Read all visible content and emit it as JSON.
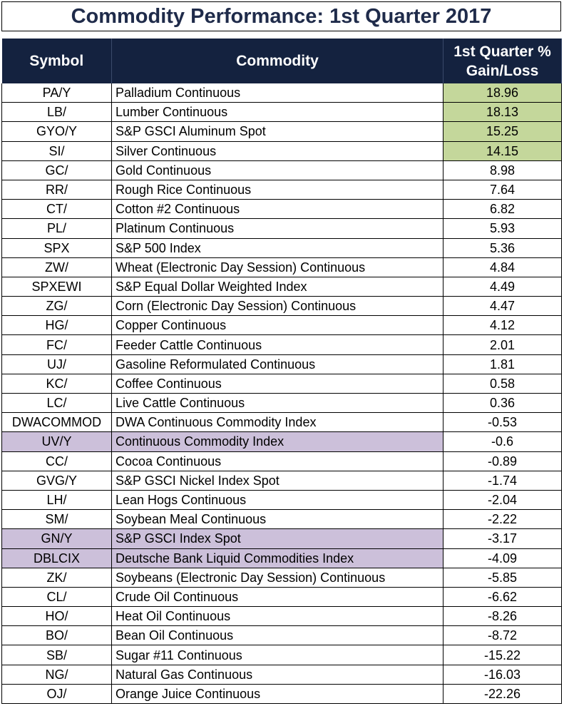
{
  "title": "Commodity Performance: 1st Quarter 2017",
  "colors": {
    "header_bg": "#14223f",
    "title_text": "#1f2b4a",
    "gain_highlight": "#c4d79b",
    "index_highlight": "#ccc0da"
  },
  "chart_data": {
    "type": "table",
    "title": "Commodity Performance: 1st Quarter 2017",
    "columns": [
      "Symbol",
      "Commodity",
      "1st Quarter %",
      "Gain/Loss"
    ],
    "rows": [
      {
        "symbol": "PA/Y",
        "commodity": "Palladium Continuous",
        "value": "18.96",
        "highlight": "gain"
      },
      {
        "symbol": "LB/",
        "commodity": "Lumber Continuous",
        "value": "18.13",
        "highlight": "gain"
      },
      {
        "symbol": "GYO/Y",
        "commodity": "S&P GSCI Aluminum Spot",
        "value": "15.25",
        "highlight": "gain"
      },
      {
        "symbol": "SI/",
        "commodity": "Silver Continuous",
        "value": "14.15",
        "highlight": "gain"
      },
      {
        "symbol": "GC/",
        "commodity": "Gold Continuous",
        "value": "8.98",
        "highlight": "none"
      },
      {
        "symbol": "RR/",
        "commodity": "Rough Rice Continuous",
        "value": "7.64",
        "highlight": "none"
      },
      {
        "symbol": "CT/",
        "commodity": "Cotton #2 Continuous",
        "value": "6.82",
        "highlight": "none"
      },
      {
        "symbol": "PL/",
        "commodity": "Platinum Continuous",
        "value": "5.93",
        "highlight": "none"
      },
      {
        "symbol": "SPX",
        "commodity": "S&P 500 Index",
        "value": "5.36",
        "highlight": "none"
      },
      {
        "symbol": "ZW/",
        "commodity": "Wheat (Electronic Day Session) Continuous",
        "value": "4.84",
        "highlight": "none"
      },
      {
        "symbol": "SPXEWI",
        "commodity": "S&P Equal Dollar Weighted Index",
        "value": "4.49",
        "highlight": "none"
      },
      {
        "symbol": "ZG/",
        "commodity": "Corn (Electronic Day Session) Continuous",
        "value": "4.47",
        "highlight": "none"
      },
      {
        "symbol": "HG/",
        "commodity": "Copper Continuous",
        "value": "4.12",
        "highlight": "none"
      },
      {
        "symbol": "FC/",
        "commodity": "Feeder Cattle Continuous",
        "value": "2.01",
        "highlight": "none"
      },
      {
        "symbol": "UJ/",
        "commodity": "Gasoline Reformulated Continuous",
        "value": "1.81",
        "highlight": "none"
      },
      {
        "symbol": "KC/",
        "commodity": "Coffee Continuous",
        "value": "0.58",
        "highlight": "none"
      },
      {
        "symbol": "LC/",
        "commodity": "Live Cattle Continuous",
        "value": "0.36",
        "highlight": "none"
      },
      {
        "symbol": "DWACOMMOD",
        "commodity": "DWA Continuous Commodity Index",
        "value": "-0.53",
        "highlight": "none"
      },
      {
        "symbol": "UV/Y",
        "commodity": "Continuous Commodity Index",
        "value": "-0.6",
        "highlight": "index"
      },
      {
        "symbol": "CC/",
        "commodity": "Cocoa  Continuous",
        "value": "-0.89",
        "highlight": "none"
      },
      {
        "symbol": "GVG/Y",
        "commodity": "S&P GSCI Nickel Index Spot",
        "value": "-1.74",
        "highlight": "none"
      },
      {
        "symbol": "LH/",
        "commodity": "Lean Hogs Continuous",
        "value": "-2.04",
        "highlight": "none"
      },
      {
        "symbol": "SM/",
        "commodity": "Soybean Meal Continuous",
        "value": "-2.22",
        "highlight": "none"
      },
      {
        "symbol": "GN/Y",
        "commodity": "S&P GSCI Index Spot",
        "value": "-3.17",
        "highlight": "index"
      },
      {
        "symbol": "DBLCIX",
        "commodity": "Deutsche Bank Liquid Commodities Index",
        "value": "-4.09",
        "highlight": "index"
      },
      {
        "symbol": "ZK/",
        "commodity": "Soybeans (Electronic Day Session) Continuous",
        "value": "-5.85",
        "highlight": "none"
      },
      {
        "symbol": "CL/",
        "commodity": "Crude Oil Continuous",
        "value": "-6.62",
        "highlight": "none"
      },
      {
        "symbol": "HO/",
        "commodity": "Heat Oil Continuous",
        "value": "-8.26",
        "highlight": "none"
      },
      {
        "symbol": "BO/",
        "commodity": "Bean Oil Continuous",
        "value": "-8.72",
        "highlight": "none"
      },
      {
        "symbol": "SB/",
        "commodity": "Sugar #11 Continuous",
        "value": "-15.22",
        "highlight": "none"
      },
      {
        "symbol": "NG/",
        "commodity": "Natural Gas Continuous",
        "value": "-16.03",
        "highlight": "none"
      },
      {
        "symbol": "OJ/",
        "commodity": "Orange Juice Continuous",
        "value": "-22.26",
        "highlight": "none"
      }
    ]
  }
}
